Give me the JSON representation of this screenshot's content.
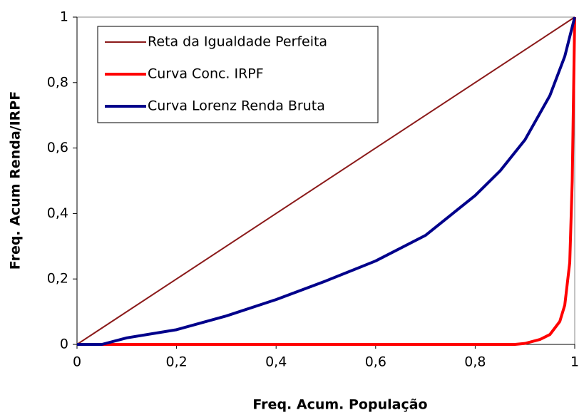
{
  "chart_data": {
    "type": "line",
    "xlabel": "Freq. Acum. População",
    "ylabel": "Freq. Acum Renda/IRPF",
    "xlim": [
      0,
      1
    ],
    "ylim": [
      0,
      1
    ],
    "xticks": [
      0,
      {
        "value": 0.2,
        "label": "0,2"
      },
      {
        "value": 0.4,
        "label": "0,4"
      },
      {
        "value": 0.6,
        "label": "0,6"
      },
      {
        "value": 0.8,
        "label": "0,8"
      },
      1
    ],
    "yticks": [
      0,
      {
        "value": 0.2,
        "label": "0,2"
      },
      {
        "value": 0.4,
        "label": "0,4"
      },
      {
        "value": 0.6,
        "label": "0,6"
      },
      {
        "value": 0.8,
        "label": "0,8"
      },
      1
    ],
    "legend": "upper left",
    "series": [
      {
        "name": "Reta da Igualdade Perfeita",
        "color": "#8b1a1a",
        "width": 2,
        "x": [
          0,
          1
        ],
        "values": [
          0,
          1
        ]
      },
      {
        "name": "Curva Conc. IRPF",
        "color": "#ff0000",
        "width": 4,
        "x": [
          0,
          0.5,
          0.88,
          0.9,
          0.93,
          0.95,
          0.97,
          0.98,
          0.99,
          0.995,
          1
        ],
        "values": [
          0,
          0,
          0,
          0.003,
          0.015,
          0.03,
          0.07,
          0.12,
          0.25,
          0.5,
          1
        ]
      },
      {
        "name": "Curva Lorenz Renda Bruta",
        "color": "#00008b",
        "width": 4,
        "x": [
          0,
          0.05,
          0.1,
          0.2,
          0.3,
          0.4,
          0.5,
          0.6,
          0.7,
          0.8,
          0.85,
          0.9,
          0.95,
          0.98,
          1
        ],
        "values": [
          0,
          0,
          0.02,
          0.045,
          0.087,
          0.137,
          0.194,
          0.255,
          0.333,
          0.455,
          0.53,
          0.625,
          0.76,
          0.88,
          1
        ]
      }
    ]
  }
}
